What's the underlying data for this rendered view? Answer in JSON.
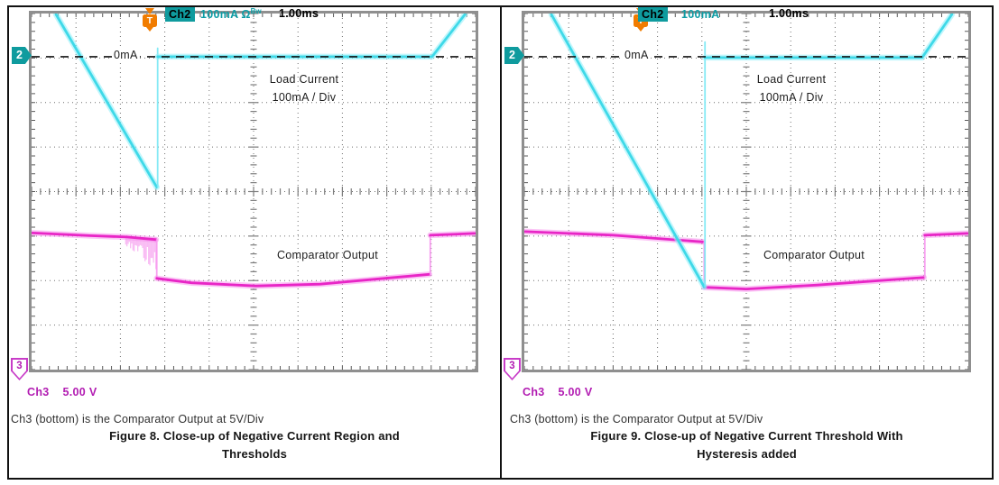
{
  "colors": {
    "cyan_trace": "#3FD9E8",
    "cyan_halo": "rgba(150,240,250,0.6)",
    "cyan_edge": "rgba(120,232,244,0.9)",
    "magenta_trace": "#E826C6",
    "magenta_halo": "rgba(247,140,237,0.5)",
    "magenta_edge": "rgba(247,150,238,0.9)",
    "chatter": "rgba(243,120,233,0.5)",
    "teal_badge": "#0F9B9E",
    "teal_text": "#0D9DA5",
    "magenta_text": "#B21CB2",
    "orange_trigger": "#F17C00",
    "outline_magenta": "#C83CC8"
  },
  "panels": [
    {
      "channel2_marker": "2",
      "channel3_marker": "3",
      "trigger_marker": "T",
      "zero_label": "0mA",
      "load_line1": "Load Current",
      "load_line2": "100mA / Div",
      "comparator_label": "Comparator Output",
      "readout": {
        "ch2_name": "Ch2",
        "ch2_scale": "100mA",
        "ch2_coupling": "Ω",
        "ch2_bw_limit": "Bw",
        "timebase": "1.00ms",
        "ch3_name": "Ch3",
        "ch3_scale": "5.00 V"
      },
      "caption": "Ch3 (bottom) is the Comparator Output at 5V/Div",
      "figure_title_line1": "Figure 8. Close-up of Negative Current Region and",
      "figure_title_line2": "Thresholds"
    },
    {
      "channel2_marker": "2",
      "channel3_marker": "3",
      "trigger_marker": "T",
      "zero_label": "0mA",
      "load_line1": "Load Current",
      "load_line2": "100mA / Div",
      "comparator_label": "Comparator Output",
      "readout": {
        "ch2_name": "Ch2",
        "ch2_scale": "100mA",
        "ch2_coupling": "",
        "ch2_bw_limit": "",
        "timebase": "1.00ms",
        "ch3_name": "Ch3",
        "ch3_scale": "5.00 V"
      },
      "caption": "Ch3 (bottom) is the Comparator Output at 5V/Div",
      "figure_title_line1": "Figure 9. Close-up of Negative Current Threshold With",
      "figure_title_line2": "Hysteresis added"
    }
  ],
  "chart_data": [
    {
      "type": "line",
      "title": "Figure 8. Close-up of Negative Current Region and Thresholds",
      "x_divisions": 10,
      "y_divisions": 8,
      "time_per_div": "1.00ms",
      "zero_ref_div": 0.97,
      "trigger_x_div": 2.64,
      "axes": [
        {
          "channel": "Ch2",
          "name": "Load Current",
          "scale": "100mA / Div",
          "zero_at_div_from_top": 0.97
        },
        {
          "channel": "Ch3",
          "name": "Comparator Output",
          "scale": "5.00 V / Div"
        }
      ],
      "series": [
        {
          "name": "comparator-output",
          "channel": "Ch3",
          "color": "#E826C6",
          "halo": "rgba(247,140,237,0.5)",
          "edge": "rgba(247,150,238,0.9)",
          "chatter_region_div": {
            "x1": 2.12,
            "x2": 2.8,
            "y_top": 5.03,
            "y_max": 5.78
          },
          "segments": [
            {
              "style": "main",
              "pts": [
                [
                  0.02,
                  4.93
                ],
                [
                  1.3,
                  4.99
                ],
                [
                  2.15,
                  5.02
                ],
                [
                  2.8,
                  5.08
                ]
              ]
            },
            {
              "style": "edge",
              "pts": [
                [
                  2.82,
                  5.08
                ],
                [
                  2.82,
                  5.95
                ]
              ]
            },
            {
              "style": "main",
              "pts": [
                [
                  2.82,
                  5.95
                ],
                [
                  3.6,
                  6.05
                ],
                [
                  5.05,
                  6.12
                ],
                [
                  6.5,
                  6.08
                ],
                [
                  8.96,
                  5.86
                ]
              ]
            },
            {
              "style": "edge",
              "pts": [
                [
                  8.98,
                  5.86
                ],
                [
                  8.98,
                  4.98
                ]
              ]
            },
            {
              "style": "main",
              "pts": [
                [
                  8.98,
                  4.98
                ],
                [
                  9.98,
                  4.94
                ]
              ]
            }
          ]
        },
        {
          "name": "load-current",
          "channel": "Ch2",
          "color": "#3FD9E8",
          "halo": "rgba(150,240,250,0.6)",
          "edge": "rgba(120,232,244,0.9)",
          "segments": [
            {
              "style": "main",
              "pts": [
                [
                  0.55,
                  0.02
                ],
                [
                  2.82,
                  3.9
                ]
              ]
            },
            {
              "style": "edge",
              "pts": [
                [
                  2.84,
                  3.9
                ],
                [
                  2.84,
                  0.78
                ]
              ]
            },
            {
              "style": "main",
              "pts": [
                [
                  2.84,
                  0.97
                ],
                [
                  9.02,
                  0.97
                ],
                [
                  9.76,
                  0.02
                ]
              ]
            }
          ]
        }
      ]
    },
    {
      "type": "line",
      "title": "Figure 9. Close-up of Negative Current Threshold With Hysteresis added",
      "x_divisions": 10,
      "y_divisions": 8,
      "time_per_div": "1.00ms",
      "zero_ref_div": 0.97,
      "trigger_x_div": 2.61,
      "axes": [
        {
          "channel": "Ch2",
          "name": "Load Current",
          "scale": "100mA / Div",
          "zero_at_div_from_top": 0.97
        },
        {
          "channel": "Ch3",
          "name": "Comparator Output",
          "scale": "5.00 V / Div"
        }
      ],
      "series": [
        {
          "name": "comparator-output",
          "channel": "Ch3",
          "color": "#E826C6",
          "halo": "rgba(247,140,237,0.5)",
          "edge": "rgba(247,150,238,0.9)",
          "segments": [
            {
              "style": "main",
              "pts": [
                [
                  0.02,
                  4.9
                ],
                [
                  2.0,
                  4.98
                ],
                [
                  4.02,
                  5.13
                ]
              ]
            },
            {
              "style": "edge",
              "pts": [
                [
                  4.05,
                  5.13
                ],
                [
                  4.05,
                  6.15
                ]
              ]
            },
            {
              "style": "main",
              "pts": [
                [
                  4.05,
                  6.15
                ],
                [
                  5.0,
                  6.19
                ],
                [
                  6.6,
                  6.1
                ],
                [
                  9.0,
                  5.93
                ]
              ]
            },
            {
              "style": "edge",
              "pts": [
                [
                  9.02,
                  5.93
                ],
                [
                  9.02,
                  4.98
                ]
              ]
            },
            {
              "style": "main",
              "pts": [
                [
                  9.02,
                  4.98
                ],
                [
                  9.98,
                  4.94
                ]
              ]
            }
          ]
        },
        {
          "name": "load-current",
          "channel": "Ch2",
          "color": "#3FD9E8",
          "halo": "rgba(150,240,250,0.6)",
          "edge": "rgba(120,232,244,0.9)",
          "segments": [
            {
              "style": "main",
              "pts": [
                [
                  0.61,
                  0.02
                ],
                [
                  4.05,
                  6.14
                ]
              ]
            },
            {
              "style": "edge",
              "pts": [
                [
                  4.07,
                  6.14
                ],
                [
                  4.07,
                  0.64
                ]
              ]
            },
            {
              "style": "main",
              "pts": [
                [
                  4.07,
                  0.99
                ],
                [
                  8.96,
                  0.99
                ],
                [
                  9.63,
                  0.02
                ]
              ]
            }
          ]
        }
      ]
    }
  ]
}
